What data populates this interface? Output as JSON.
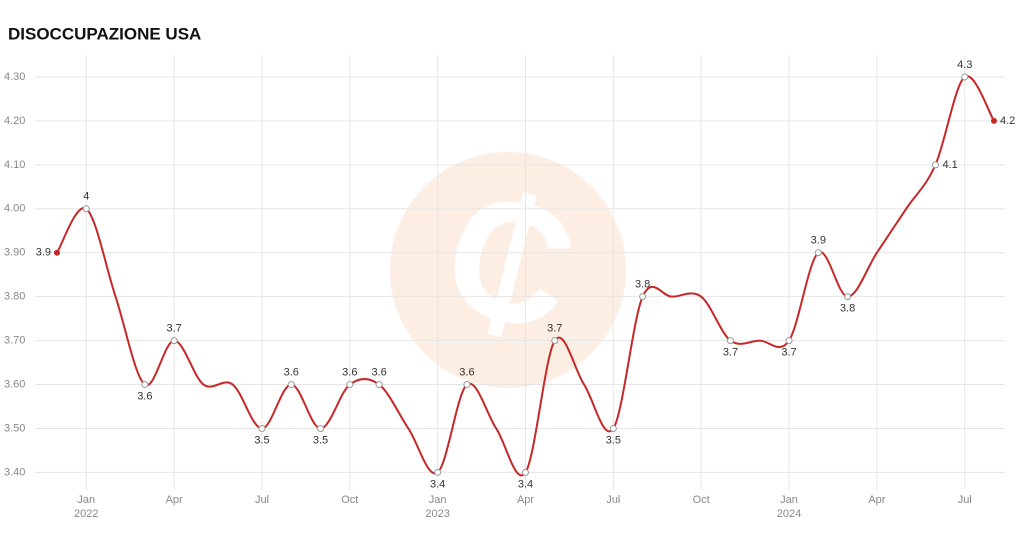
{
  "chart_data": {
    "type": "line",
    "title": "DISOCCUPAZIONE USA",
    "x": [
      "2021-12",
      "2022-01",
      "2022-02",
      "2022-03",
      "2022-04",
      "2022-05",
      "2022-06",
      "2022-07",
      "2022-08",
      "2022-09",
      "2022-10",
      "2022-11",
      "2022-12",
      "2023-01",
      "2023-02",
      "2023-03",
      "2023-04",
      "2023-05",
      "2023-06",
      "2023-07",
      "2023-08",
      "2023-09",
      "2023-10",
      "2023-11",
      "2023-12",
      "2024-01",
      "2024-02",
      "2024-03",
      "2024-04",
      "2024-05",
      "2024-06",
      "2024-07",
      "2024-08"
    ],
    "series": [
      {
        "color": "#c62828",
        "values": [
          3.9,
          4.0,
          3.8,
          3.6,
          3.7,
          3.6,
          3.6,
          3.5,
          3.6,
          3.5,
          3.6,
          3.6,
          3.5,
          3.4,
          3.6,
          3.5,
          3.4,
          3.7,
          3.6,
          3.5,
          3.8,
          3.8,
          3.8,
          3.7,
          3.7,
          3.7,
          3.9,
          3.8,
          3.9,
          4.0,
          4.1,
          4.3,
          4.2
        ],
        "value_labels": [
          "3.9",
          "4",
          null,
          "3.6",
          "3.7",
          null,
          null,
          "3.5",
          "3.6",
          "3.5",
          "3.6",
          "3.6",
          null,
          "3.4",
          "3.6",
          null,
          "3.4",
          "3.7",
          null,
          "3.5",
          "3.8",
          null,
          null,
          "3.7",
          null,
          "3.7",
          "3.9",
          "3.8",
          null,
          null,
          "4.1",
          "4.3",
          "4.2"
        ]
      }
    ],
    "xlim": [
      "2021-12",
      "2024-08"
    ],
    "xticks": [
      {
        "value": "2022-01",
        "label": "Jan",
        "year": "2022"
      },
      {
        "value": "2022-04",
        "label": "Apr"
      },
      {
        "value": "2022-07",
        "label": "Jul"
      },
      {
        "value": "2022-10",
        "label": "Oct"
      },
      {
        "value": "2023-01",
        "label": "Jan",
        "year": "2023"
      },
      {
        "value": "2023-04",
        "label": "Apr"
      },
      {
        "value": "2023-07",
        "label": "Jul"
      },
      {
        "value": "2023-10",
        "label": "Oct"
      },
      {
        "value": "2024-01",
        "label": "Jan",
        "year": "2024"
      },
      {
        "value": "2024-04",
        "label": "Apr"
      },
      {
        "value": "2024-07",
        "label": "Jul"
      }
    ],
    "ylim": [
      3.36,
      4.35
    ],
    "yticks": [
      {
        "value": 3.4,
        "label": "3.40"
      },
      {
        "value": 3.5,
        "label": "3.50"
      },
      {
        "value": 3.6,
        "label": "3.60"
      },
      {
        "value": 3.7,
        "label": "3.70"
      },
      {
        "value": 3.8,
        "label": "3.80"
      },
      {
        "value": 3.9,
        "label": "3.90"
      },
      {
        "value": 4.0,
        "label": "4.00"
      },
      {
        "value": 4.1,
        "label": "4.10"
      },
      {
        "value": 4.2,
        "label": "4.20"
      },
      {
        "value": 4.3,
        "label": "4.30"
      }
    ],
    "grid": true
  }
}
